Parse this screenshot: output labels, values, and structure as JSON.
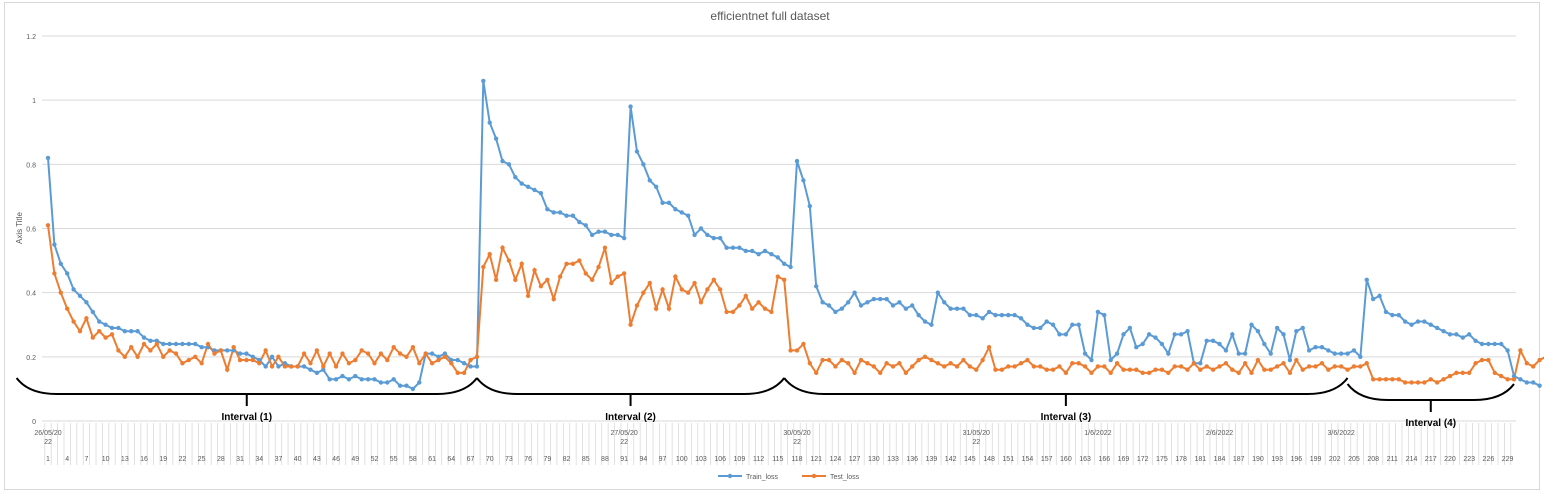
{
  "chart_data": {
    "type": "line",
    "title": "efficientnet full dataset",
    "ylabel": "Axis Title",
    "xlabel": "",
    "ylim": [
      0,
      1.2
    ],
    "yticks": [
      "0",
      "0.2",
      "0.4",
      "0.6",
      "0.8",
      "1",
      "1.2"
    ],
    "grid": true,
    "legend_position": "bottom",
    "x_range": [
      1,
      230
    ],
    "x_tick_labels": [
      "1",
      "4",
      "7",
      "10",
      "13",
      "16",
      "19",
      "22",
      "25",
      "28",
      "31",
      "34",
      "37",
      "40",
      "43",
      "46",
      "49",
      "52",
      "55",
      "58",
      "61",
      "64",
      "67",
      "70",
      "73",
      "76",
      "79",
      "82",
      "85",
      "88",
      "91",
      "94",
      "97",
      "100",
      "103",
      "106",
      "109",
      "112",
      "115",
      "118",
      "121",
      "124",
      "127",
      "130",
      "133",
      "136",
      "139",
      "142",
      "145",
      "148",
      "151",
      "154",
      "157",
      "160",
      "163",
      "166",
      "169",
      "172",
      "175",
      "178",
      "181",
      "184",
      "187",
      "190",
      "193",
      "196",
      "199",
      "202",
      "205",
      "208",
      "211",
      "214",
      "217",
      "220",
      "223",
      "226",
      "229"
    ],
    "date_labels": [
      {
        "x": 1,
        "label": "26/05/2022"
      },
      {
        "x": 91,
        "label": "27/05/2022"
      },
      {
        "x": 118,
        "label": "30/05/2022"
      },
      {
        "x": 146,
        "label": "31/05/2022"
      },
      {
        "x": 165,
        "label": "1/6/2022"
      },
      {
        "x": 184,
        "label": "2/6/2022"
      },
      {
        "x": 203,
        "label": "3/6/2022"
      }
    ],
    "intervals": [
      {
        "label": "Interval (1)",
        "x_start": 0,
        "x_end": 68
      },
      {
        "label": "Interval (2)",
        "x_start": 68,
        "x_end": 116
      },
      {
        "label": "Interval (3)",
        "x_start": 116,
        "x_end": 204
      },
      {
        "label": "Interval (4)",
        "x_start": 204,
        "x_end": 230
      }
    ],
    "series": [
      {
        "name": "Train_loss",
        "color": "#5b9bd5",
        "values": [
          0.82,
          0.55,
          0.49,
          0.46,
          0.41,
          0.39,
          0.37,
          0.34,
          0.31,
          0.3,
          0.29,
          0.29,
          0.28,
          0.28,
          0.28,
          0.26,
          0.25,
          0.25,
          0.24,
          0.24,
          0.24,
          0.24,
          0.24,
          0.24,
          0.23,
          0.23,
          0.22,
          0.22,
          0.22,
          0.22,
          0.21,
          0.21,
          0.2,
          0.19,
          0.17,
          0.2,
          0.17,
          0.18,
          0.17,
          0.17,
          0.17,
          0.16,
          0.15,
          0.16,
          0.13,
          0.13,
          0.14,
          0.13,
          0.14,
          0.13,
          0.13,
          0.13,
          0.12,
          0.12,
          0.13,
          0.11,
          0.11,
          0.1,
          0.12,
          0.21,
          0.21,
          0.2,
          0.21,
          0.19,
          0.19,
          0.18,
          0.17,
          0.17,
          1.06,
          0.93,
          0.88,
          0.81,
          0.8,
          0.76,
          0.74,
          0.73,
          0.72,
          0.71,
          0.66,
          0.65,
          0.65,
          0.64,
          0.64,
          0.62,
          0.61,
          0.58,
          0.59,
          0.59,
          0.58,
          0.58,
          0.57,
          0.98,
          0.84,
          0.8,
          0.75,
          0.73,
          0.68,
          0.68,
          0.66,
          0.65,
          0.64,
          0.58,
          0.6,
          0.58,
          0.57,
          0.57,
          0.54,
          0.54,
          0.54,
          0.53,
          0.53,
          0.52,
          0.53,
          0.52,
          0.51,
          0.49,
          0.48,
          0.81,
          0.75,
          0.67,
          0.42,
          0.37,
          0.36,
          0.34,
          0.35,
          0.37,
          0.4,
          0.36,
          0.37,
          0.38,
          0.38,
          0.38,
          0.36,
          0.37,
          0.35,
          0.36,
          0.33,
          0.31,
          0.3,
          0.4,
          0.37,
          0.35,
          0.35,
          0.35,
          0.33,
          0.33,
          0.32,
          0.34,
          0.33,
          0.33,
          0.33,
          0.33,
          0.32,
          0.3,
          0.29,
          0.29,
          0.31,
          0.3,
          0.27,
          0.27,
          0.3,
          0.3,
          0.21,
          0.19,
          0.34,
          0.33,
          0.19,
          0.21,
          0.27,
          0.29,
          0.23,
          0.24,
          0.27,
          0.26,
          0.24,
          0.21,
          0.27,
          0.27,
          0.28,
          0.18,
          0.18,
          0.25,
          0.25,
          0.24,
          0.22,
          0.27,
          0.21,
          0.21,
          0.3,
          0.28,
          0.24,
          0.21,
          0.29,
          0.27,
          0.19,
          0.28,
          0.29,
          0.22,
          0.23,
          0.23,
          0.22,
          0.21,
          0.21,
          0.21,
          0.22,
          0.2,
          0.44,
          0.38,
          0.39,
          0.34,
          0.33,
          0.33,
          0.31,
          0.3,
          0.31,
          0.31,
          0.3,
          0.29,
          0.28,
          0.27,
          0.27,
          0.26,
          0.27,
          0.25,
          0.24,
          0.24,
          0.24,
          0.24,
          0.22,
          0.14,
          0.13,
          0.12,
          0.12,
          0.11
        ]
      },
      {
        "name": "Test_loss",
        "color": "#ed7d31",
        "values": [
          0.61,
          0.46,
          0.4,
          0.35,
          0.31,
          0.28,
          0.32,
          0.26,
          0.28,
          0.26,
          0.27,
          0.22,
          0.2,
          0.23,
          0.2,
          0.24,
          0.22,
          0.24,
          0.2,
          0.22,
          0.21,
          0.18,
          0.19,
          0.2,
          0.18,
          0.24,
          0.21,
          0.22,
          0.16,
          0.23,
          0.19,
          0.19,
          0.19,
          0.18,
          0.22,
          0.17,
          0.2,
          0.17,
          0.17,
          0.17,
          0.21,
          0.18,
          0.22,
          0.17,
          0.21,
          0.17,
          0.21,
          0.18,
          0.19,
          0.22,
          0.21,
          0.18,
          0.21,
          0.19,
          0.23,
          0.21,
          0.2,
          0.23,
          0.18,
          0.21,
          0.18,
          0.19,
          0.2,
          0.18,
          0.15,
          0.15,
          0.19,
          0.2,
          0.48,
          0.52,
          0.44,
          0.54,
          0.5,
          0.44,
          0.49,
          0.39,
          0.47,
          0.42,
          0.44,
          0.38,
          0.45,
          0.49,
          0.49,
          0.5,
          0.46,
          0.44,
          0.48,
          0.54,
          0.43,
          0.45,
          0.46,
          0.3,
          0.36,
          0.4,
          0.43,
          0.35,
          0.41,
          0.35,
          0.45,
          0.41,
          0.4,
          0.43,
          0.37,
          0.41,
          0.44,
          0.41,
          0.34,
          0.34,
          0.36,
          0.39,
          0.35,
          0.37,
          0.35,
          0.34,
          0.45,
          0.44,
          0.22,
          0.22,
          0.24,
          0.18,
          0.15,
          0.19,
          0.19,
          0.17,
          0.19,
          0.18,
          0.15,
          0.19,
          0.18,
          0.17,
          0.15,
          0.18,
          0.17,
          0.18,
          0.15,
          0.17,
          0.19,
          0.2,
          0.19,
          0.18,
          0.17,
          0.18,
          0.17,
          0.19,
          0.17,
          0.16,
          0.19,
          0.23,
          0.16,
          0.16,
          0.17,
          0.17,
          0.18,
          0.19,
          0.17,
          0.17,
          0.16,
          0.16,
          0.17,
          0.15,
          0.18,
          0.18,
          0.17,
          0.15,
          0.17,
          0.17,
          0.15,
          0.18,
          0.16,
          0.16,
          0.16,
          0.15,
          0.15,
          0.16,
          0.16,
          0.15,
          0.17,
          0.17,
          0.16,
          0.18,
          0.16,
          0.17,
          0.16,
          0.17,
          0.18,
          0.16,
          0.15,
          0.18,
          0.15,
          0.19,
          0.16,
          0.16,
          0.17,
          0.18,
          0.15,
          0.19,
          0.16,
          0.17,
          0.17,
          0.18,
          0.16,
          0.17,
          0.17,
          0.16,
          0.17,
          0.17,
          0.18,
          0.13,
          0.13,
          0.13,
          0.13,
          0.13,
          0.12,
          0.12,
          0.12,
          0.12,
          0.13,
          0.12,
          0.13,
          0.14,
          0.15,
          0.15,
          0.15,
          0.18,
          0.19,
          0.19,
          0.15,
          0.14,
          0.13,
          0.13,
          0.22,
          0.18,
          0.17,
          0.19,
          0.2,
          0.21
        ]
      }
    ]
  }
}
